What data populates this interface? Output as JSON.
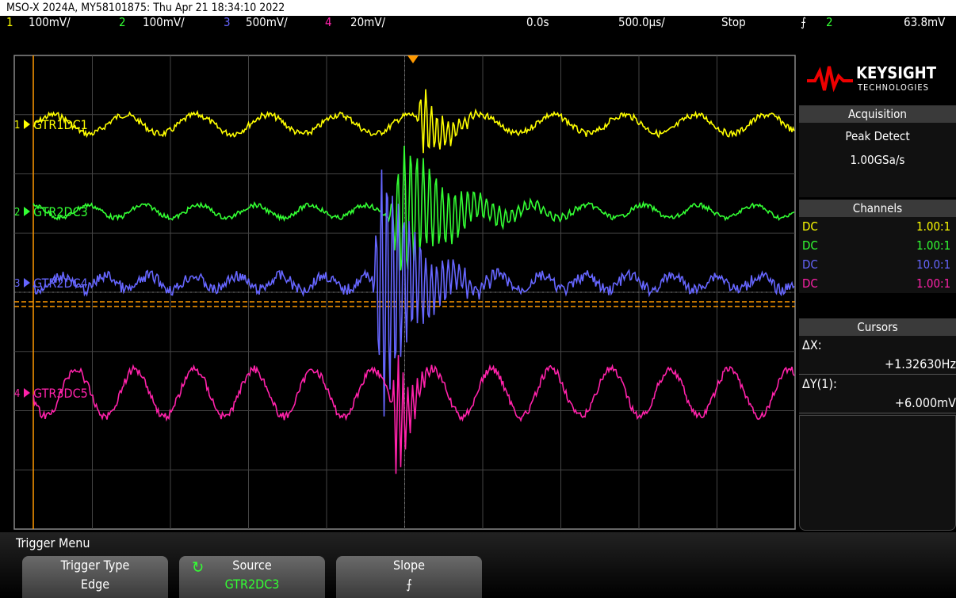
{
  "header": {
    "title": "MSO-X 2024A, MY58101875: Thu Apr 21 18:34:10 2022"
  },
  "status": {
    "ch1": "1",
    "ch1_scale": "100mV/",
    "ch2": "2",
    "ch2_scale": "100mV/",
    "ch3": "3",
    "ch3_scale": "500mV/",
    "ch4": "4",
    "ch4_scale": "20mV/",
    "delay": "0.0s",
    "timebase": "500.0µs/",
    "run_state": "Stop",
    "trigger_source": "2",
    "trigger_level": "63.8mV"
  },
  "channels": [
    {
      "number": "1",
      "label": "GTR1DC1"
    },
    {
      "number": "2",
      "label": "GTR2DC3"
    },
    {
      "number": "3",
      "label": "GTR2DC4"
    },
    {
      "number": "4",
      "label": "GTR3DC5"
    }
  ],
  "side_panel": {
    "brand": "KEYSIGHT",
    "brand_sub": "TECHNOLOGIES",
    "acquisition": {
      "title": "Acquisition",
      "mode": "Peak Detect",
      "rate": "1.00GSa/s"
    },
    "channels": {
      "title": "Channels",
      "rows": [
        [
          "DC",
          "1.00:1"
        ],
        [
          "DC",
          "1.00:1"
        ],
        [
          "DC",
          "10.0:1"
        ],
        [
          "DC",
          "1.00:1"
        ]
      ]
    },
    "cursors": {
      "title": "Cursors",
      "dx_label": "ΔX:",
      "dx_value": "+1.32630Hz",
      "dy_label": "ΔY(1):",
      "dy_value": "+6.000mV"
    }
  },
  "menu": {
    "title": "Trigger Menu",
    "keys": [
      {
        "label": "Trigger Type",
        "value": "Edge"
      },
      {
        "label": "Source",
        "value": "GTR2DC3"
      },
      {
        "label": "Slope"
      }
    ]
  }
}
